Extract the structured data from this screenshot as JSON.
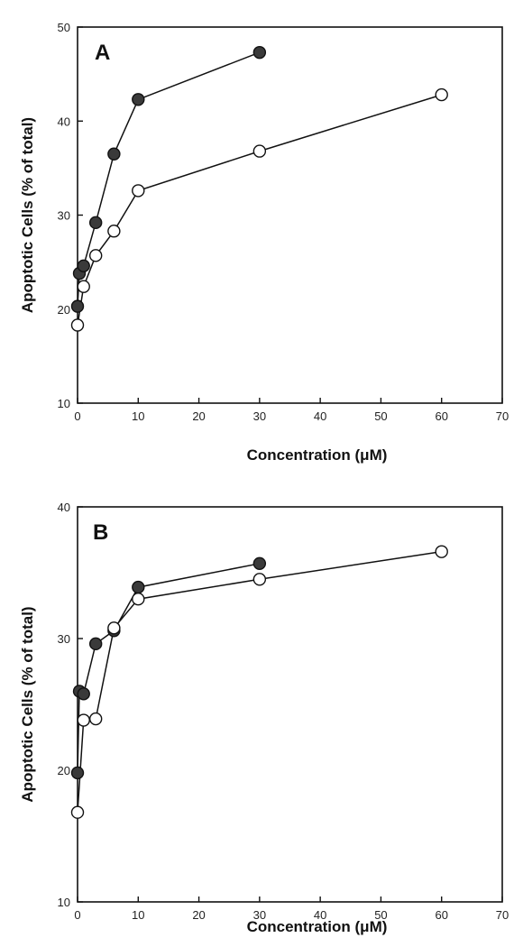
{
  "chart_data": [
    {
      "type": "line",
      "panel_label": "A",
      "xlabel": "Concentration (μM)",
      "ylabel": "Apoptotic Cells (% of total)",
      "xlim": [
        0,
        70
      ],
      "ylim": [
        10,
        50
      ],
      "xticks": [
        0,
        10,
        20,
        30,
        40,
        50,
        60,
        70
      ],
      "yticks": [
        10,
        20,
        30,
        40,
        50
      ],
      "grid": false,
      "series": [
        {
          "marker": "filled-circle",
          "color": "#3a3a3a",
          "x": [
            0,
            0.3,
            1,
            3,
            6,
            10,
            30
          ],
          "y": [
            20.3,
            23.8,
            24.6,
            29.2,
            36.5,
            42.3,
            47.3
          ]
        },
        {
          "marker": "open-circle",
          "color": "#ffffff",
          "x": [
            0,
            1,
            3,
            6,
            10,
            30,
            60
          ],
          "y": [
            18.3,
            22.4,
            25.7,
            28.3,
            32.6,
            36.8,
            42.8
          ]
        }
      ]
    },
    {
      "type": "line",
      "panel_label": "B",
      "xlabel": "Concentration (μM)",
      "ylabel": "Apoptotic Cells (% of total)",
      "xlim": [
        0,
        70
      ],
      "ylim": [
        10,
        40
      ],
      "xticks": [
        0,
        10,
        20,
        30,
        40,
        50,
        60,
        70
      ],
      "yticks": [
        10,
        20,
        30,
        40
      ],
      "grid": false,
      "series": [
        {
          "marker": "filled-circle",
          "color": "#3a3a3a",
          "x": [
            0,
            0.3,
            1,
            3,
            6,
            10,
            30
          ],
          "y": [
            19.8,
            26,
            25.8,
            29.6,
            30.6,
            33.9,
            35.7
          ]
        },
        {
          "marker": "open-circle",
          "color": "#ffffff",
          "x": [
            0,
            1,
            3,
            6,
            10,
            30,
            60
          ],
          "y": [
            16.8,
            23.8,
            23.9,
            30.8,
            33,
            34.5,
            36.6
          ]
        }
      ]
    }
  ]
}
